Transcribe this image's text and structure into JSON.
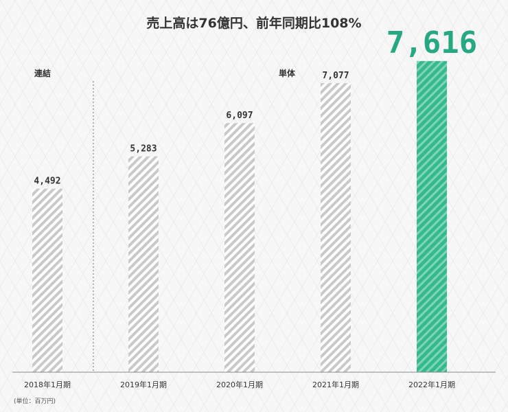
{
  "chart_data": {
    "type": "bar",
    "title": "売上高は76億円、前年同期比108%",
    "categories": [
      "2018年1月期",
      "2019年1月期",
      "2020年1月期",
      "2021年1月期",
      "2022年1月期"
    ],
    "values": [
      4492,
      5283,
      6097,
      7077,
      7616
    ],
    "value_labels": [
      "4,492",
      "5,283",
      "6,097",
      "7,077",
      "7,616"
    ],
    "segments": [
      {
        "label": "連結",
        "categories": [
          "2018年1月期"
        ]
      },
      {
        "label": "単体",
        "categories": [
          "2019年1月期",
          "2020年1月期",
          "2021年1月期",
          "2022年1月期"
        ]
      }
    ],
    "highlight_index": 4,
    "unit_note": "(単位：百万円)",
    "ylim": [
      0,
      8000
    ],
    "grid": false,
    "colors": {
      "bar": "#c9c9c9",
      "bar_stripe": "#ffffff",
      "highlight": "#37b98f",
      "highlight_stripe": "#7fd6b5",
      "highlight_text": "#26a882",
      "background": "#f7f7f7"
    }
  }
}
